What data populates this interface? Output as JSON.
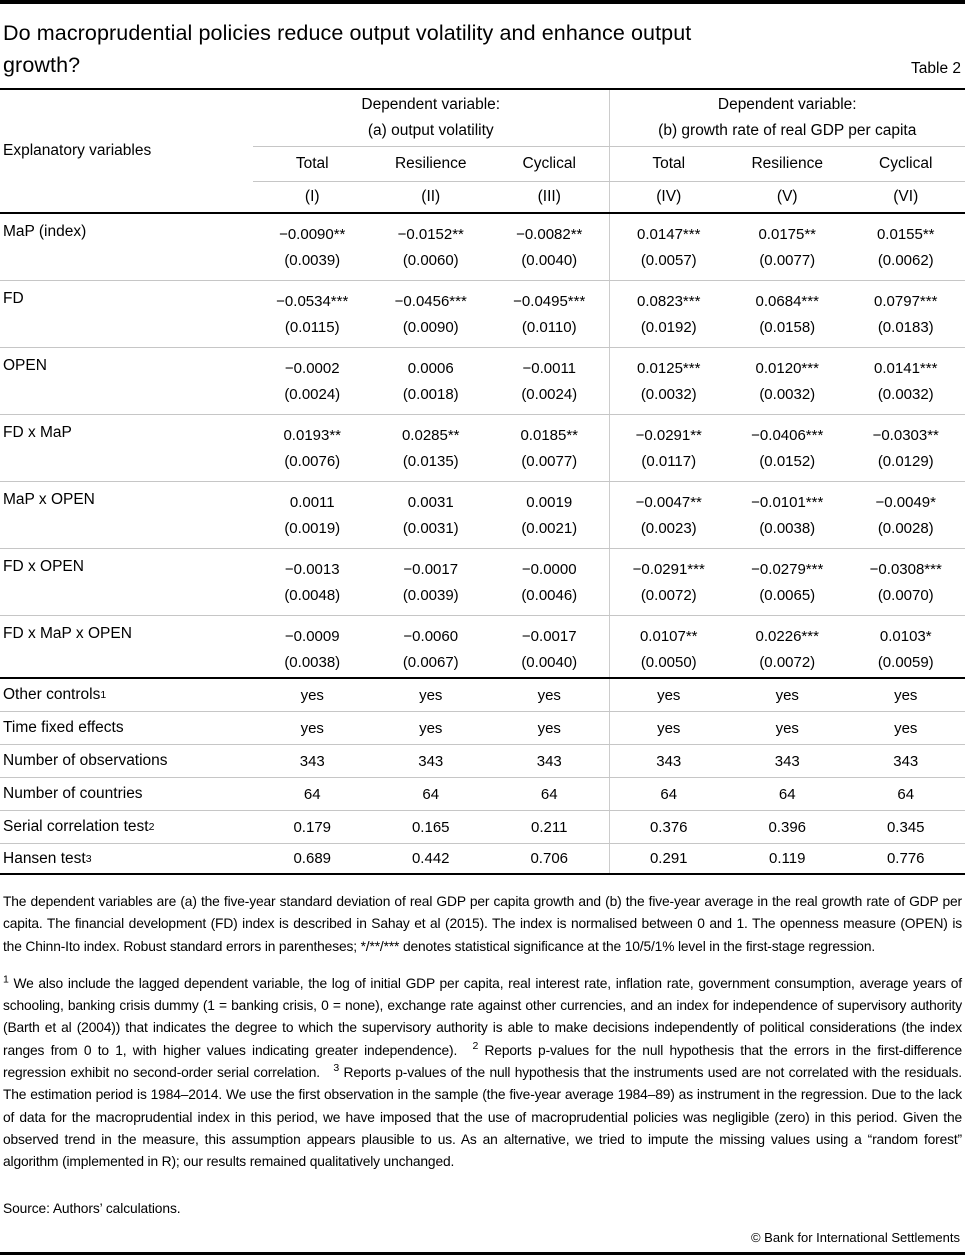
{
  "page": {
    "title_line1": "Do macroprudential policies reduce output volatility and enhance output",
    "title_line2": "growth?",
    "table_label": "Table 2",
    "source": "Source: Authors’ calculations.",
    "copyright": "© Bank for International Settlements"
  },
  "table": {
    "row_header": "Explanatory variables",
    "groups": [
      {
        "line1": "Dependent variable:",
        "line2": "(a) output volatility"
      },
      {
        "line1": "Dependent variable:",
        "line2": "(b) growth rate of real GDP per capita"
      }
    ],
    "subheaders": [
      "Total",
      "Resilience",
      "Cyclical",
      "Total",
      "Resilience",
      "Cyclical"
    ],
    "col_numbers": [
      "(I)",
      "(II)",
      "(III)",
      "(IV)",
      "(V)",
      "(VI)"
    ],
    "coef_rows": [
      {
        "label": "MaP (index)",
        "coefs": [
          "−0.0090**",
          "−0.0152**",
          "−0.0082**",
          "0.0147***",
          "0.0175**",
          "0.0155**"
        ],
        "ses": [
          "(0.0039)",
          "(0.0060)",
          "(0.0040)",
          "(0.0057)",
          "(0.0077)",
          "(0.0062)"
        ]
      },
      {
        "label": "FD",
        "coefs": [
          "−0.0534***",
          "−0.0456***",
          "−0.0495***",
          "0.0823***",
          "0.0684***",
          "0.0797***"
        ],
        "ses": [
          "(0.0115)",
          "(0.0090)",
          "(0.0110)",
          "(0.0192)",
          "(0.0158)",
          "(0.0183)"
        ]
      },
      {
        "label": "OPEN",
        "coefs": [
          "−0.0002",
          "0.0006",
          "−0.0011",
          "0.0125***",
          "0.0120***",
          "0.0141***"
        ],
        "ses": [
          "(0.0024)",
          "(0.0018)",
          "(0.0024)",
          "(0.0032)",
          "(0.0032)",
          "(0.0032)"
        ]
      },
      {
        "label": "FD x MaP",
        "coefs": [
          "0.0193**",
          "0.0285**",
          "0.0185**",
          "−0.0291**",
          "−0.0406***",
          "−0.0303**"
        ],
        "ses": [
          "(0.0076)",
          "(0.0135)",
          "(0.0077)",
          "(0.0117)",
          "(0.0152)",
          "(0.0129)"
        ]
      },
      {
        "label": "MaP x OPEN",
        "coefs": [
          "0.0011",
          "0.0031",
          "0.0019",
          "−0.0047**",
          "−0.0101***",
          "−0.0049*"
        ],
        "ses": [
          "(0.0019)",
          "(0.0031)",
          "(0.0021)",
          "(0.0023)",
          "(0.0038)",
          "(0.0028)"
        ]
      },
      {
        "label": "FD x OPEN",
        "coefs": [
          "−0.0013",
          "−0.0017",
          "−0.0000",
          "−0.0291***",
          "−0.0279***",
          "−0.0308***"
        ],
        "ses": [
          "(0.0048)",
          "(0.0039)",
          "(0.0046)",
          "(0.0072)",
          "(0.0065)",
          "(0.0070)"
        ]
      },
      {
        "label": "FD x MaP x OPEN",
        "coefs": [
          "−0.0009",
          "−0.0060",
          "−0.0017",
          "0.0107**",
          "0.0226***",
          "0.0103*"
        ],
        "ses": [
          "(0.0038)",
          "(0.0067)",
          "(0.0040)",
          "(0.0050)",
          "(0.0072)",
          "(0.0059)"
        ]
      }
    ],
    "summary_rows": [
      {
        "label": "Other controls",
        "sup": "1",
        "values": [
          "yes",
          "yes",
          "yes",
          "yes",
          "yes",
          "yes"
        ]
      },
      {
        "label": "Time fixed effects",
        "sup": "",
        "values": [
          "yes",
          "yes",
          "yes",
          "yes",
          "yes",
          "yes"
        ]
      },
      {
        "label": "Number of observations",
        "sup": "",
        "values": [
          "343",
          "343",
          "343",
          "343",
          "343",
          "343"
        ]
      },
      {
        "label": "Number of countries",
        "sup": "",
        "values": [
          "64",
          "64",
          "64",
          "64",
          "64",
          "64"
        ]
      },
      {
        "label": "Serial correlation test",
        "sup": "2",
        "values": [
          "0.179",
          "0.165",
          "0.211",
          "0.376",
          "0.396",
          "0.345"
        ]
      },
      {
        "label": "Hansen test",
        "sup": "3",
        "values": [
          "0.689",
          "0.442",
          "0.706",
          "0.291",
          "0.119",
          "0.776"
        ]
      }
    ]
  },
  "notes": {
    "para1": "The dependent variables are (a) the five-year standard deviation of real GDP per capita growth and (b) the five-year average in the real growth rate of GDP per capita. The financial development (FD) index is described in Sahay et al (2015). The index is normalised between 0 and 1. The openness measure (OPEN) is the Chinn-Ito index. Robust standard errors in parentheses; */**/*** denotes statistical significance at the 10/5/1% level in the first-stage regression.",
    "footnotes": [
      {
        "marker": "1",
        "text": "We also include the lagged dependent variable, the log of initial GDP per capita, real interest rate, inflation rate, government consumption, average years of schooling, banking crisis dummy (1 = banking crisis, 0 = none), exchange rate against other currencies, and an index for independence of supervisory authority (Barth et al (2004)) that indicates the degree to which the supervisory authority is able to make decisions independently of political considerations (the index ranges from 0 to 1, with higher values indicating greater independence)."
      },
      {
        "marker": "2",
        "text": "Reports p-values for the null hypothesis that the errors in the first-difference regression exhibit no second-order serial correlation."
      },
      {
        "marker": "3",
        "text": "Reports p-values of the null hypothesis that the instruments used are not correlated with the residuals. The estimation period is 1984–2014. We use the first observation in the sample (the five-year average 1984–89) as instrument in the regression. Due to the lack of data for the macroprudential index in this period, we have imposed that the use of macroprudential policies was negligible (zero) in this period. Given the observed trend in the measure, this assumption appears plausible to us. As an alternative, we tried to impute the missing values using a “random forest” algorithm (implemented in R); our results remained qualitatively unchanged."
      }
    ]
  }
}
